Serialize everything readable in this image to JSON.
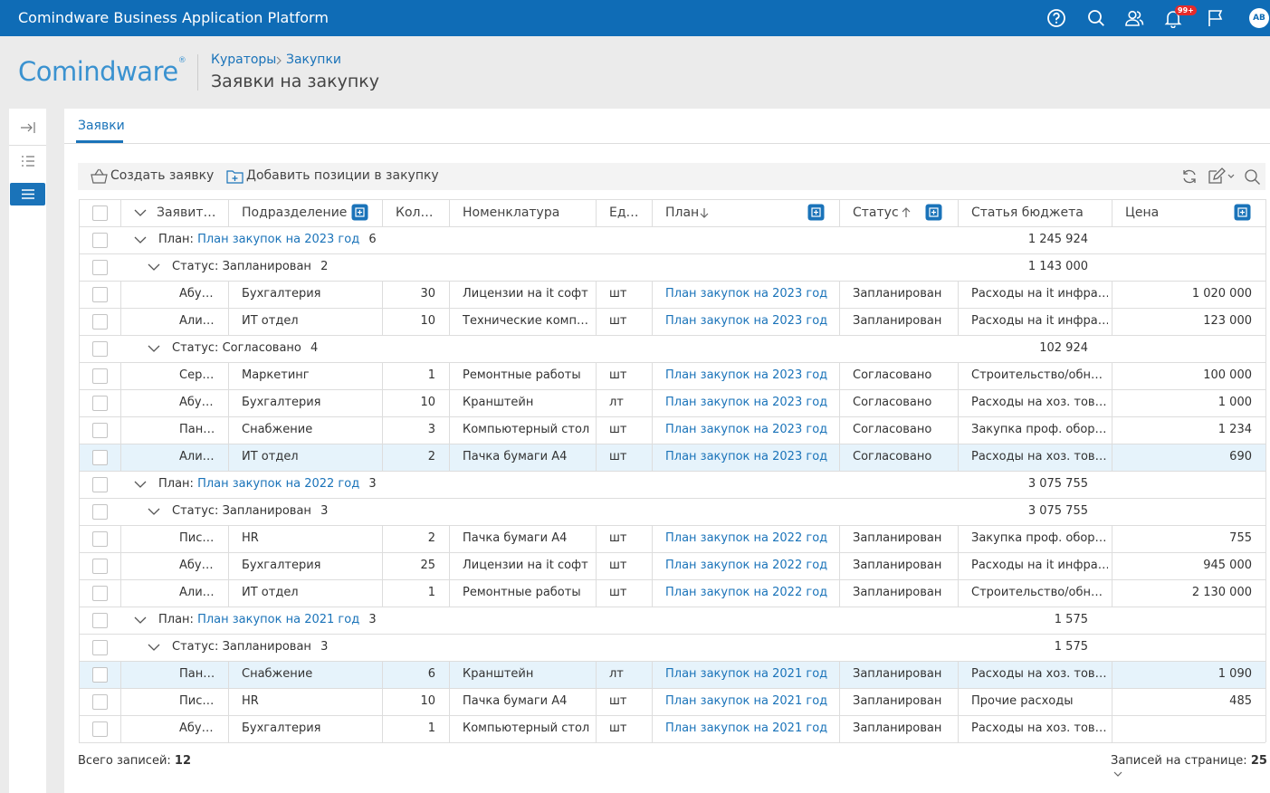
{
  "header": {
    "app_title": "Comindware Business Application Platform",
    "badge": "99+",
    "avatar": "AB"
  },
  "logo": {
    "text": "Comindware",
    "mark": "®"
  },
  "breadcrumb": [
    "Кураторы",
    "Закупки"
  ],
  "page_title": "Заявки на закупку",
  "tab": "Заявки",
  "toolbar": [
    "Создать заявку",
    "Добавить позиции в закупку"
  ],
  "table": {
    "columns": [
      {
        "name": "Заявит…"
      },
      {
        "name": "Подразделение"
      },
      {
        "name": "Кол…"
      },
      {
        "name": "Номенклатура"
      },
      {
        "name": "Ед…"
      },
      {
        "name": "План",
        "sort": "desc"
      },
      {
        "name": "Статус",
        "sort": "asc"
      },
      {
        "name": "Статья бюджета"
      },
      {
        "name": "Цена"
      }
    ],
    "groups": [
      {
        "label": "План:",
        "value": "План закупок на 2023 год",
        "count": 6,
        "total": "1 245 924",
        "subgroups": [
          {
            "label": "Статус:",
            "value": "Запланирован",
            "count": 2,
            "total": "1 143 000",
            "rows": [
              {
                "cells": [
                  "Абу…",
                  "Бухгалтерия",
                  "30",
                  "Лицензии на it софт",
                  "шт",
                  "План закупок на 2023 год",
                  "Запланирован",
                  "Расходы на it инфра…",
                  "1 020 000"
                ]
              },
              {
                "cells": [
                  "Али…",
                  "ИТ отдел",
                  "10",
                  "Технические комп…",
                  "шт",
                  "План закупок на 2023 год",
                  "Запланирован",
                  "Расходы на it инфра…",
                  "123 000"
                ]
              }
            ]
          },
          {
            "label": "Статус:",
            "value": "Согласовано",
            "count": 4,
            "total": "102 924",
            "rows": [
              {
                "cells": [
                  "Сер…",
                  "Маркетинг",
                  "1",
                  "Ремонтные работы",
                  "шт",
                  "План закупок на 2023 год",
                  "Согласовано",
                  "Строительство/обн…",
                  "100 000"
                ]
              },
              {
                "cells": [
                  "Абу…",
                  "Бухгалтерия",
                  "10",
                  "Кранштейн",
                  "лт",
                  "План закупок на 2023 год",
                  "Согласовано",
                  "Расходы на хоз. тов…",
                  "1 000"
                ]
              },
              {
                "cells": [
                  "Пан…",
                  "Снабжение",
                  "3",
                  "Компьютерный стол",
                  "шт",
                  "План закупок на 2023 год",
                  "Согласовано",
                  "Закупка проф. обор…",
                  "1 234"
                ]
              },
              {
                "cells": [
                  "Али…",
                  "ИТ отдел",
                  "2",
                  "Пачка бумаги А4",
                  "шт",
                  "План закупок на 2023 год",
                  "Согласовано",
                  "Расходы на хоз. тов…",
                  "690"
                ],
                "highlight": true
              }
            ]
          }
        ]
      },
      {
        "label": "План:",
        "value": "План закупок на 2022 год",
        "count": 3,
        "total": "3 075 755",
        "subgroups": [
          {
            "label": "Статус:",
            "value": "Запланирован",
            "count": 3,
            "total": "3 075 755",
            "rows": [
              {
                "cells": [
                  "Пис…",
                  "HR",
                  "2",
                  "Пачка бумаги А4",
                  "шт",
                  "План закупок на 2022 год",
                  "Запланирован",
                  "Закупка проф. обор…",
                  "755"
                ]
              },
              {
                "cells": [
                  "Абу…",
                  "Бухгалтерия",
                  "25",
                  "Лицензии на it софт",
                  "шт",
                  "План закупок на 2022 год",
                  "Запланирован",
                  "Расходы на it инфра…",
                  "945 000"
                ]
              },
              {
                "cells": [
                  "Али…",
                  "ИТ отдел",
                  "1",
                  "Ремонтные работы",
                  "шт",
                  "План закупок на 2022 год",
                  "Запланирован",
                  "Строительство/обн…",
                  "2 130 000"
                ]
              }
            ]
          }
        ]
      },
      {
        "label": "План:",
        "value": "План закупок на 2021 год",
        "count": 3,
        "total": "1 575",
        "subgroups": [
          {
            "label": "Статус:",
            "value": "Запланирован",
            "count": 3,
            "total": "1 575",
            "rows": [
              {
                "cells": [
                  "Пан…",
                  "Снабжение",
                  "6",
                  "Кранштейн",
                  "лт",
                  "План закупок на 2021 год",
                  "Запланирован",
                  "Расходы на хоз. тов…",
                  "1 090"
                ],
                "highlight": true
              },
              {
                "cells": [
                  "Пис…",
                  "HR",
                  "10",
                  "Пачка бумаги А4",
                  "шт",
                  "План закупок на 2021 год",
                  "Запланирован",
                  "Прочие расходы",
                  "485"
                ]
              },
              {
                "cells": [
                  "Абу…",
                  "Бухгалтерия",
                  "1",
                  "Компьютерный стол",
                  "шт",
                  "План закупок на 2021 год",
                  "Запланирован",
                  "Расходы на хоз. тов…",
                  null
                ]
              }
            ]
          }
        ]
      }
    ]
  },
  "footer": {
    "total_label": "Всего записей:",
    "total": 12,
    "page_size_label": "Записей на странице:",
    "page_size": 25
  }
}
